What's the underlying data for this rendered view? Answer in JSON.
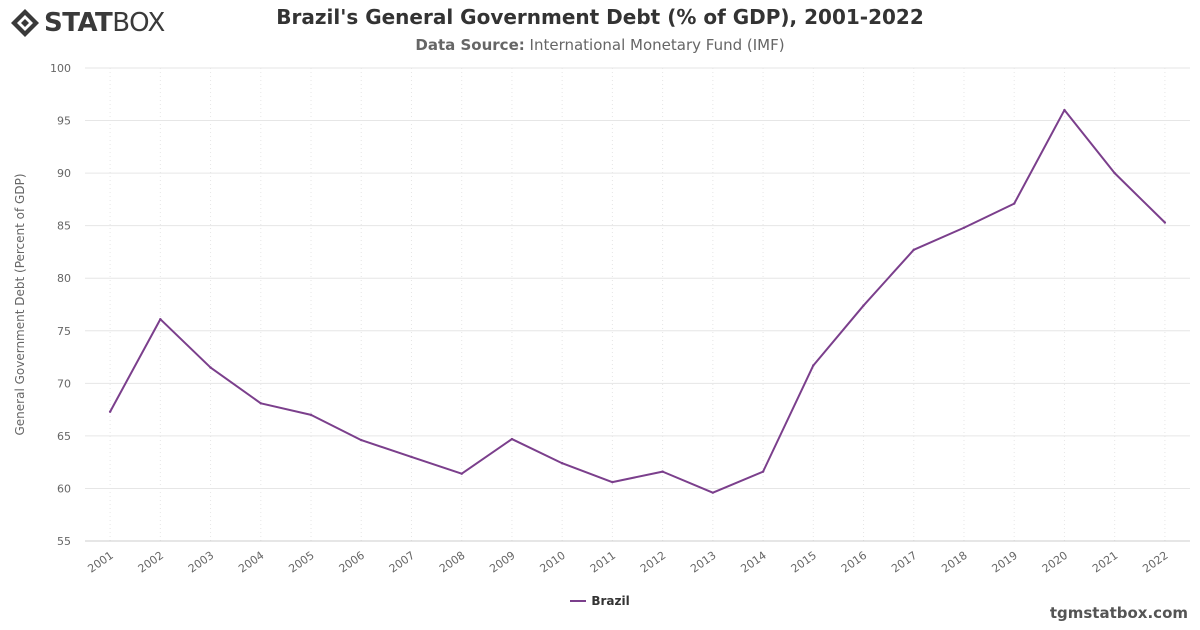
{
  "brand": {
    "logo_text_bold": "STAT",
    "logo_text_light": "BOX",
    "footer": "tgmstatbox.com"
  },
  "header": {
    "title": "Brazil's General Government Debt (% of GDP), 2001-2022",
    "source_label": "Data Source:",
    "source_value": "International Monetary Fund (IMF)"
  },
  "colors": {
    "series": "#7b3f8c",
    "grid": "#e6e6e6",
    "axis_text": "#666666"
  },
  "chart_data": {
    "type": "line",
    "title": "Brazil's General Government Debt (% of GDP), 2001-2022",
    "xlabel": "",
    "ylabel": "General Government Debt (Percent of GDP)",
    "ylim": [
      55,
      100
    ],
    "yticks": [
      55,
      60,
      65,
      70,
      75,
      80,
      85,
      90,
      95,
      100
    ],
    "grid": true,
    "legend_position": "bottom-center",
    "x": [
      "2001",
      "2002",
      "2003",
      "2004",
      "2005",
      "2006",
      "2007",
      "2008",
      "2009",
      "2010",
      "2011",
      "2012",
      "2013",
      "2014",
      "2015",
      "2016",
      "2017",
      "2018",
      "2019",
      "2020",
      "2021",
      "2022"
    ],
    "series": [
      {
        "name": "Brazil",
        "values": [
          67.3,
          76.1,
          71.5,
          68.1,
          67.0,
          64.6,
          63.0,
          61.4,
          64.7,
          62.4,
          60.6,
          61.6,
          59.6,
          61.6,
          71.7,
          77.4,
          82.7,
          84.8,
          87.1,
          96.0,
          90.0,
          85.3
        ]
      }
    ]
  }
}
